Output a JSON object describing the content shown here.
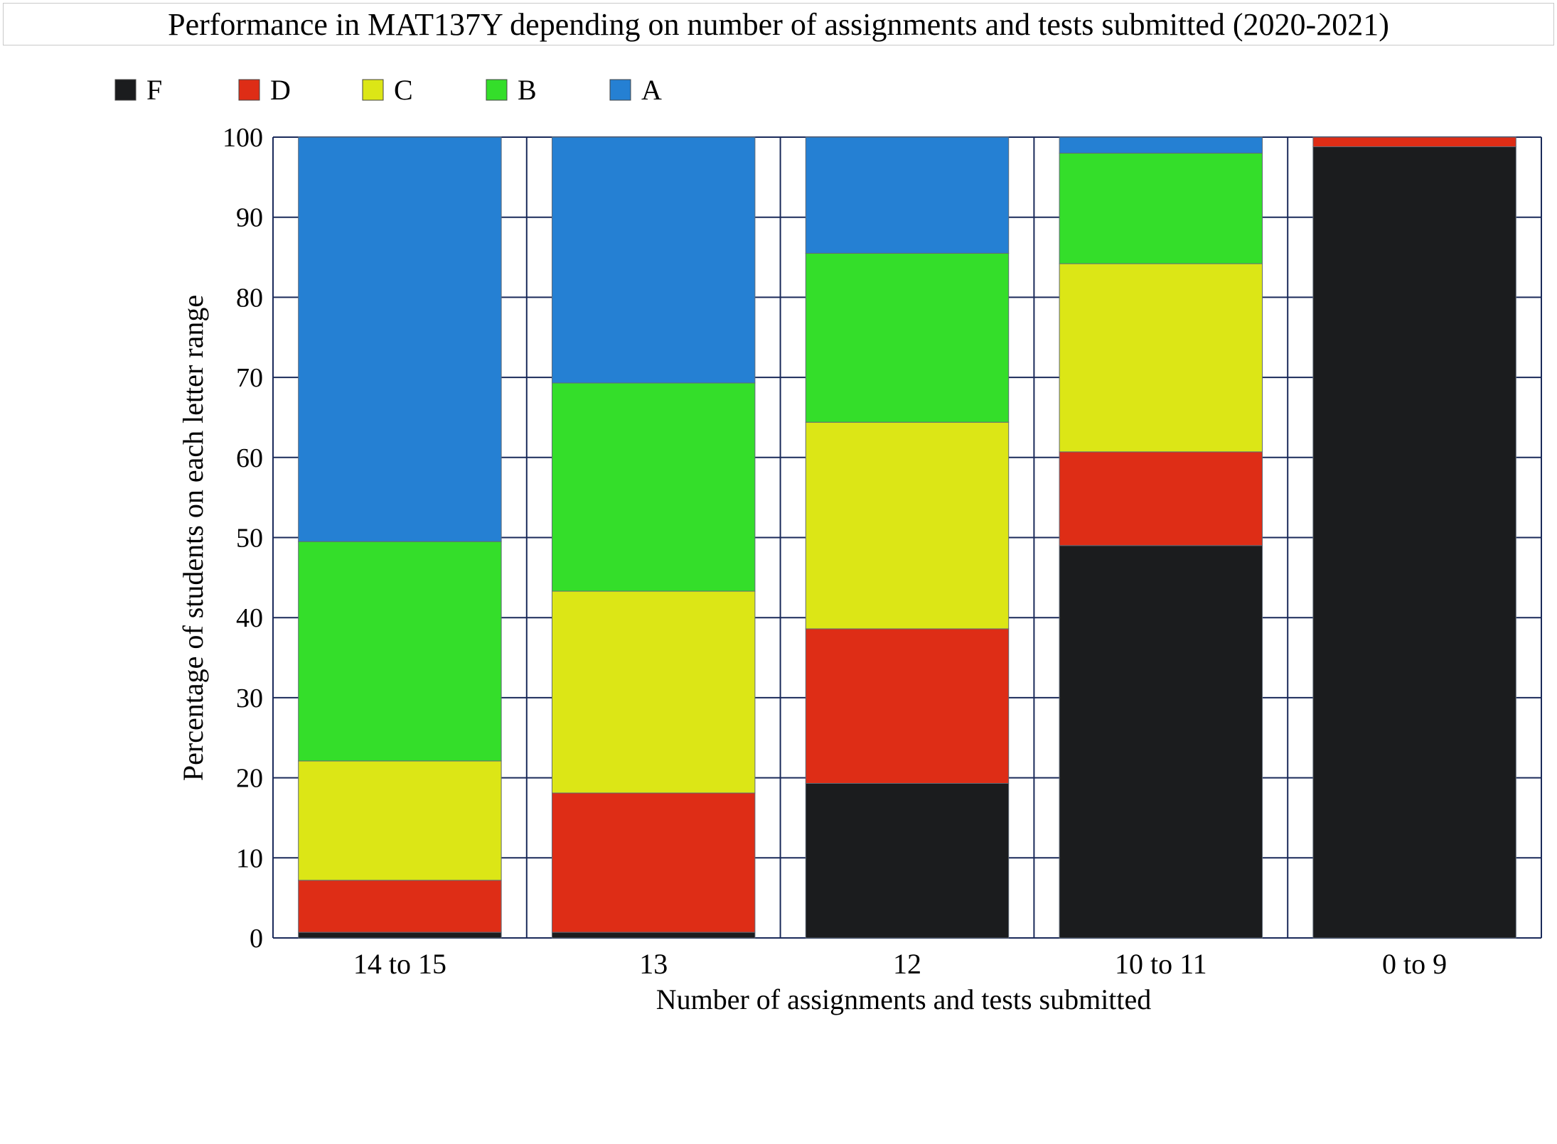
{
  "chart_data": {
    "type": "bar",
    "stacked": true,
    "title": "Performance in MAT137Y depending on number of assignments and tests submitted (2020-2021)",
    "xlabel": "Number of assignments and tests submitted",
    "ylabel": "Percentage of students on each letter range",
    "ylim": [
      0,
      100
    ],
    "yticks": [
      "0",
      "10",
      "20",
      "30",
      "40",
      "50",
      "60",
      "70",
      "80",
      "90",
      "100"
    ],
    "grid": true,
    "legend_position": "top-left",
    "categories": [
      "14 to 15",
      "13",
      "12",
      "10 to 11",
      "0 to 9"
    ],
    "series": [
      {
        "name": "F",
        "color": "#1b1c1e",
        "values": [
          0.7,
          0.7,
          19.3,
          49.0,
          98.8
        ]
      },
      {
        "name": "D",
        "color": "#de2d16",
        "values": [
          6.5,
          17.4,
          19.3,
          11.7,
          1.2
        ]
      },
      {
        "name": "C",
        "color": "#dce616",
        "values": [
          14.9,
          25.2,
          25.8,
          23.5,
          0
        ]
      },
      {
        "name": "B",
        "color": "#34de2a",
        "values": [
          27.4,
          26.0,
          21.1,
          13.8,
          0
        ]
      },
      {
        "name": "A",
        "color": "#2580d3",
        "values": [
          50.5,
          30.7,
          14.5,
          2.0,
          0
        ]
      }
    ],
    "colors": {
      "grid": "#1a2a5a",
      "bar_border": "#5f6a77"
    }
  }
}
